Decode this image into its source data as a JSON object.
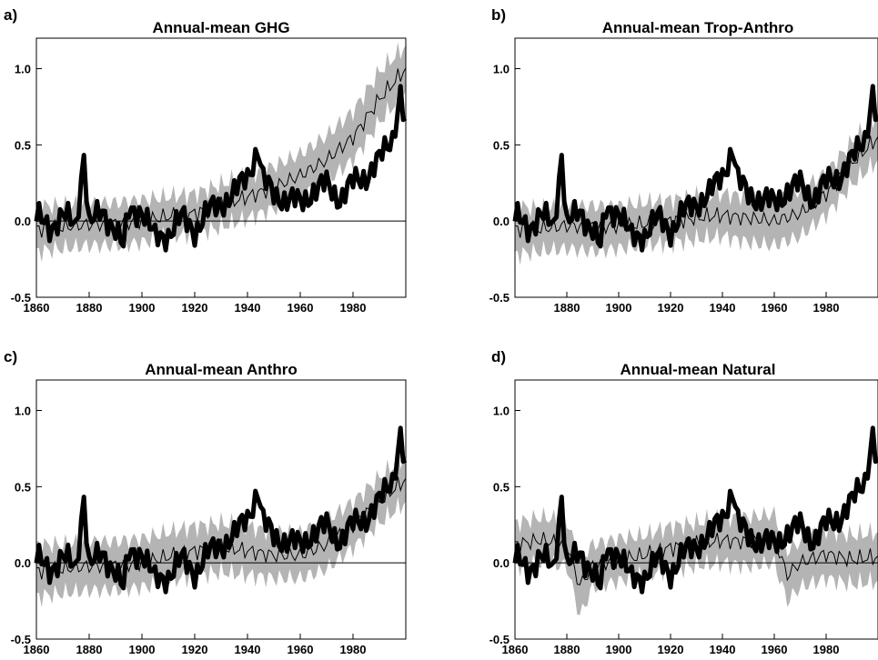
{
  "figure": {
    "shading_color": "#b4b4b4",
    "observed_color": "#000000",
    "line_color": "#000000"
  },
  "chart_data": [
    {
      "type": "area",
      "panel_label": "a)",
      "title": "Annual-mean GHG",
      "xlim": [
        1860,
        2000
      ],
      "ylim": [
        -0.5,
        1.2
      ],
      "x_ticks": [
        1860,
        1880,
        1900,
        1920,
        1940,
        1960,
        1980
      ],
      "x_tick_labels": [
        "1860",
        "1880",
        "1900",
        "1920",
        "1940",
        "1960",
        "1980"
      ],
      "y_ticks": [
        -0.5,
        0.0,
        0.5,
        1.0
      ],
      "y_tick_labels": [
        "-0.5",
        "0.0",
        "0.5",
        "1.0"
      ],
      "zero_line": true,
      "observed": {
        "x": [
          1860,
          1865,
          1870,
          1875,
          1878,
          1880,
          1885,
          1890,
          1893,
          1895,
          1900,
          1905,
          1910,
          1915,
          1920,
          1925,
          1930,
          1935,
          1940,
          1944,
          1946,
          1950,
          1955,
          1960,
          1965,
          1970,
          1975,
          1980,
          1985,
          1990,
          1995,
          1998,
          2000
        ],
        "y": [
          0.02,
          -0.04,
          0.04,
          -0.04,
          0.45,
          -0.02,
          0.05,
          -0.04,
          -0.18,
          0.06,
          0.08,
          -0.12,
          -0.08,
          0.02,
          -0.06,
          0.06,
          0.12,
          0.18,
          0.3,
          0.48,
          0.26,
          0.18,
          0.14,
          0.12,
          0.2,
          0.24,
          0.15,
          0.25,
          0.3,
          0.4,
          0.55,
          0.85,
          0.6
        ]
      },
      "model_ensemble": {
        "x": [
          1860,
          1870,
          1880,
          1890,
          1900,
          1910,
          1920,
          1930,
          1940,
          1950,
          1960,
          1970,
          1980,
          1990,
          2000
        ],
        "mean": [
          -0.05,
          -0.04,
          -0.02,
          -0.02,
          0.0,
          0.03,
          0.05,
          0.1,
          0.16,
          0.22,
          0.3,
          0.4,
          0.55,
          0.8,
          1.0
        ],
        "lower": [
          -0.2,
          -0.18,
          -0.16,
          -0.16,
          -0.14,
          -0.1,
          -0.08,
          -0.04,
          0.02,
          0.08,
          0.16,
          0.26,
          0.4,
          0.65,
          0.85
        ],
        "upper": [
          0.1,
          0.1,
          0.12,
          0.12,
          0.14,
          0.16,
          0.18,
          0.24,
          0.3,
          0.36,
          0.44,
          0.56,
          0.72,
          0.98,
          1.15
        ]
      }
    },
    {
      "type": "area",
      "panel_label": "b)",
      "title": "Annual-mean Trop-Anthro",
      "xlim": [
        1860,
        2000
      ],
      "ylim": [
        -0.5,
        1.2
      ],
      "x_ticks": [
        1880,
        1900,
        1920,
        1940,
        1960,
        1980
      ],
      "x_tick_labels": [
        "1880",
        "1900",
        "1920",
        "1940",
        "1960",
        "1980"
      ],
      "y_ticks": [
        -0.5,
        0.0,
        0.5,
        1.0
      ],
      "y_tick_labels": [
        "-0.5",
        "0.0",
        "0.5",
        "1.0"
      ],
      "zero_line": false,
      "observed": {
        "x": [
          1860,
          1865,
          1870,
          1875,
          1878,
          1880,
          1885,
          1890,
          1893,
          1895,
          1900,
          1905,
          1910,
          1915,
          1920,
          1925,
          1930,
          1935,
          1940,
          1944,
          1946,
          1950,
          1955,
          1960,
          1965,
          1970,
          1975,
          1980,
          1985,
          1990,
          1995,
          1998,
          2000
        ],
        "y": [
          0.02,
          -0.04,
          0.04,
          -0.04,
          0.45,
          -0.02,
          0.05,
          -0.04,
          -0.18,
          0.06,
          0.08,
          -0.12,
          -0.08,
          0.02,
          -0.06,
          0.06,
          0.12,
          0.18,
          0.3,
          0.48,
          0.26,
          0.18,
          0.14,
          0.12,
          0.2,
          0.24,
          0.15,
          0.25,
          0.3,
          0.4,
          0.55,
          0.85,
          0.6
        ]
      },
      "model_ensemble": {
        "x": [
          1860,
          1870,
          1880,
          1890,
          1900,
          1910,
          1920,
          1930,
          1940,
          1950,
          1960,
          1970,
          1980,
          1990,
          2000
        ],
        "mean": [
          -0.05,
          -0.05,
          -0.03,
          -0.04,
          -0.03,
          -0.02,
          0.0,
          0.02,
          0.04,
          0.02,
          0.0,
          0.05,
          0.18,
          0.38,
          0.55
        ],
        "lower": [
          -0.22,
          -0.2,
          -0.18,
          -0.2,
          -0.18,
          -0.16,
          -0.14,
          -0.12,
          -0.1,
          -0.14,
          -0.16,
          -0.1,
          0.04,
          0.24,
          0.4
        ],
        "upper": [
          0.1,
          0.08,
          0.1,
          0.1,
          0.1,
          0.12,
          0.14,
          0.16,
          0.18,
          0.16,
          0.14,
          0.2,
          0.32,
          0.52,
          0.7
        ]
      }
    },
    {
      "type": "area",
      "panel_label": "c)",
      "title": "Annual-mean Anthro",
      "xlim": [
        1860,
        2000
      ],
      "ylim": [
        -0.5,
        1.2
      ],
      "x_ticks": [
        1860,
        1880,
        1900,
        1920,
        1940,
        1960,
        1980
      ],
      "x_tick_labels": [
        "1860",
        "1880",
        "1900",
        "1920",
        "1940",
        "1960",
        "1980"
      ],
      "y_ticks": [
        -0.5,
        0.0,
        0.5,
        1.0
      ],
      "y_tick_labels": [
        "-0.5",
        "0.0",
        "0.5",
        "1.0"
      ],
      "zero_line": true,
      "observed": {
        "x": [
          1860,
          1865,
          1870,
          1875,
          1878,
          1880,
          1885,
          1890,
          1893,
          1895,
          1900,
          1905,
          1910,
          1915,
          1920,
          1925,
          1930,
          1935,
          1940,
          1944,
          1946,
          1950,
          1955,
          1960,
          1965,
          1970,
          1975,
          1980,
          1985,
          1990,
          1995,
          1998,
          2000
        ],
        "y": [
          0.02,
          -0.04,
          0.04,
          -0.04,
          0.45,
          -0.02,
          0.05,
          -0.04,
          -0.18,
          0.06,
          0.08,
          -0.12,
          -0.08,
          0.02,
          -0.06,
          0.06,
          0.12,
          0.18,
          0.3,
          0.48,
          0.26,
          0.18,
          0.14,
          0.12,
          0.2,
          0.24,
          0.15,
          0.25,
          0.3,
          0.4,
          0.55,
          0.85,
          0.6
        ]
      },
      "model_ensemble": {
        "x": [
          1860,
          1870,
          1880,
          1890,
          1900,
          1910,
          1920,
          1930,
          1940,
          1950,
          1960,
          1970,
          1980,
          1990,
          2000
        ],
        "mean": [
          -0.05,
          -0.04,
          -0.02,
          -0.02,
          0.0,
          0.04,
          0.08,
          0.1,
          0.08,
          0.05,
          0.05,
          0.12,
          0.25,
          0.4,
          0.55
        ],
        "lower": [
          -0.22,
          -0.2,
          -0.18,
          -0.18,
          -0.16,
          -0.12,
          -0.08,
          -0.06,
          -0.08,
          -0.1,
          -0.1,
          -0.04,
          0.1,
          0.26,
          0.4
        ],
        "upper": [
          0.12,
          0.12,
          0.14,
          0.14,
          0.16,
          0.2,
          0.24,
          0.26,
          0.24,
          0.2,
          0.2,
          0.28,
          0.4,
          0.56,
          0.7
        ]
      }
    },
    {
      "type": "area",
      "panel_label": "d)",
      "title": "Annual-mean Natural",
      "xlim": [
        1860,
        2000
      ],
      "ylim": [
        -0.5,
        1.2
      ],
      "x_ticks": [
        1860,
        1880,
        1900,
        1920,
        1940,
        1960,
        1980
      ],
      "x_tick_labels": [
        "1860",
        "1880",
        "1900",
        "1920",
        "1940",
        "1960",
        "1980"
      ],
      "y_ticks": [
        -0.5,
        0.0,
        0.5,
        1.0
      ],
      "y_tick_labels": [
        "-0.5",
        "0.0",
        "0.5",
        "1.0"
      ],
      "zero_line": true,
      "observed": {
        "x": [
          1860,
          1865,
          1870,
          1875,
          1878,
          1880,
          1885,
          1890,
          1893,
          1895,
          1900,
          1905,
          1910,
          1915,
          1920,
          1925,
          1930,
          1935,
          1940,
          1944,
          1946,
          1950,
          1955,
          1960,
          1965,
          1970,
          1975,
          1980,
          1985,
          1990,
          1995,
          1998,
          2000
        ],
        "y": [
          0.02,
          -0.04,
          0.04,
          -0.04,
          0.45,
          -0.02,
          0.05,
          -0.04,
          -0.18,
          0.06,
          0.08,
          -0.12,
          -0.08,
          0.02,
          -0.06,
          0.06,
          0.12,
          0.18,
          0.3,
          0.48,
          0.26,
          0.18,
          0.14,
          0.12,
          0.2,
          0.24,
          0.15,
          0.25,
          0.3,
          0.4,
          0.55,
          0.85,
          0.6
        ]
      },
      "model_ensemble": {
        "x": [
          1860,
          1870,
          1880,
          1885,
          1890,
          1900,
          1910,
          1920,
          1930,
          1940,
          1950,
          1960,
          1965,
          1970,
          1980,
          1990,
          2000
        ],
        "mean": [
          0.12,
          0.15,
          0.12,
          -0.15,
          -0.02,
          0.02,
          0.05,
          0.1,
          0.12,
          0.15,
          0.14,
          0.16,
          -0.08,
          0.0,
          0.06,
          0.02,
          0.04
        ],
        "lower": [
          -0.02,
          0.0,
          -0.02,
          -0.35,
          -0.16,
          -0.12,
          -0.08,
          -0.04,
          -0.02,
          0.0,
          -0.02,
          0.0,
          -0.25,
          -0.16,
          -0.1,
          -0.14,
          -0.12
        ],
        "upper": [
          0.26,
          0.3,
          0.28,
          0.02,
          0.12,
          0.16,
          0.18,
          0.24,
          0.26,
          0.3,
          0.3,
          0.32,
          0.08,
          0.14,
          0.22,
          0.18,
          0.2
        ]
      }
    }
  ]
}
